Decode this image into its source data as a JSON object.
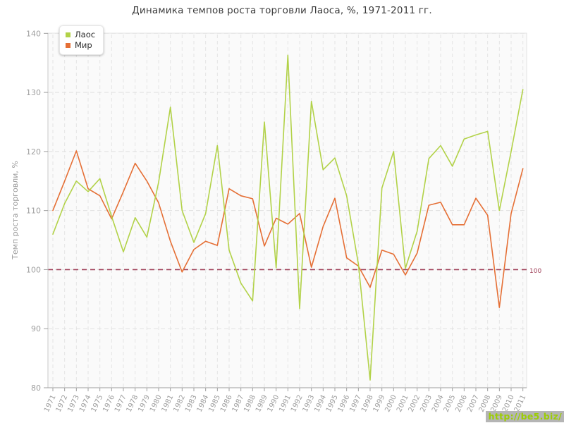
{
  "title": "Динамика темпов роста торговли Лаоса, %, 1971-2011 гг.",
  "legend": {
    "items": [
      {
        "label": "Лаос",
        "color": "#b2d248"
      },
      {
        "label": "Мир",
        "color": "#e56f35"
      }
    ]
  },
  "y_axis": {
    "label": "Темп роста торговли, %",
    "ticks": [
      80,
      90,
      100,
      110,
      120,
      130,
      140
    ]
  },
  "baseline": {
    "value": 100,
    "label": "100",
    "color": "#a0425a"
  },
  "watermark": "http://be5.biz/",
  "chart_data": {
    "type": "line",
    "title": "Динамика темпов роста торговли Лаоса, %, 1971-2011 гг.",
    "xlabel": "",
    "ylabel": "Темп роста торговли, %",
    "ylim": [
      80,
      140
    ],
    "grid": true,
    "legend_position": "top-left",
    "reference_line": 100,
    "x": [
      1971,
      1972,
      1973,
      1974,
      1975,
      1976,
      1977,
      1978,
      1979,
      1980,
      1981,
      1982,
      1983,
      1984,
      1985,
      1986,
      1987,
      1988,
      1989,
      1990,
      1991,
      1992,
      1993,
      1994,
      1995,
      1996,
      1997,
      1998,
      1999,
      2000,
      2001,
      2002,
      2003,
      2004,
      2005,
      2006,
      2007,
      2008,
      2009,
      2010,
      2011
    ],
    "series": [
      {
        "name": "Лаос",
        "color": "#b2d248",
        "values": [
          106,
          111.2,
          115,
          113.2,
          115.4,
          109,
          103,
          108.8,
          105.5,
          114.8,
          127.5,
          110,
          104.6,
          109.5,
          121,
          103.3,
          97.7,
          94.7,
          125,
          100.3,
          136.3,
          93.4,
          128.5,
          116.9,
          118.9,
          112.5,
          101,
          81.3,
          113.8,
          120,
          100.2,
          106.5,
          118.8,
          121,
          117.5,
          122.1,
          122.8,
          123.4,
          110,
          120,
          130.5
        ]
      },
      {
        "name": "Мир",
        "color": "#e56f35",
        "values": [
          110,
          115,
          120.1,
          113.7,
          112.5,
          108.6,
          113.2,
          118,
          115,
          111.3,
          104.8,
          99.6,
          103.4,
          104.8,
          104.1,
          113.7,
          112.5,
          112,
          104,
          108.7,
          107.7,
          109.5,
          100.4,
          107.3,
          112.1,
          102,
          100.6,
          97,
          103.3,
          102.6,
          99.1,
          102.8,
          110.9,
          111.4,
          107.6,
          107.6,
          112.1,
          109.2,
          93.6,
          109.5,
          117.1
        ]
      }
    ]
  }
}
